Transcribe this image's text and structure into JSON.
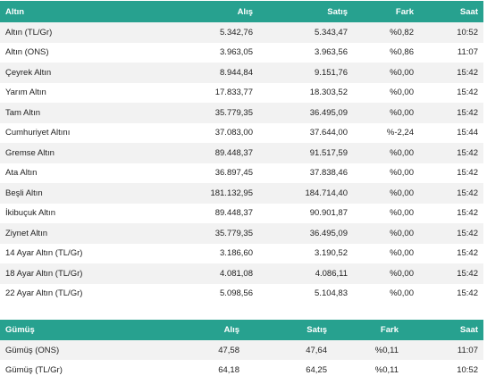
{
  "gold": {
    "headers": {
      "name": "Altın",
      "buy": "Alış",
      "sell": "Satış",
      "change": "Fark",
      "time": "Saat"
    },
    "rows": [
      {
        "name": "Altın (TL/Gr)",
        "buy": "5.342,76",
        "sell": "5.343,47",
        "change": "%0,82",
        "time": "10:52"
      },
      {
        "name": "Altın (ONS)",
        "buy": "3.963,05",
        "sell": "3.963,56",
        "change": "%0,86",
        "time": "11:07"
      },
      {
        "name": "Çeyrek Altın",
        "buy": "8.944,84",
        "sell": "9.151,76",
        "change": "%0,00",
        "time": "15:42"
      },
      {
        "name": "Yarım Altın",
        "buy": "17.833,77",
        "sell": "18.303,52",
        "change": "%0,00",
        "time": "15:42"
      },
      {
        "name": "Tam Altın",
        "buy": "35.779,35",
        "sell": "36.495,09",
        "change": "%0,00",
        "time": "15:42"
      },
      {
        "name": "Cumhuriyet Altını",
        "buy": "37.083,00",
        "sell": "37.644,00",
        "change": "%-2,24",
        "time": "15:44"
      },
      {
        "name": "Gremse Altın",
        "buy": "89.448,37",
        "sell": "91.517,59",
        "change": "%0,00",
        "time": "15:42"
      },
      {
        "name": "Ata Altın",
        "buy": "36.897,45",
        "sell": "37.838,46",
        "change": "%0,00",
        "time": "15:42"
      },
      {
        "name": "Beşli Altın",
        "buy": "181.132,95",
        "sell": "184.714,40",
        "change": "%0,00",
        "time": "15:42"
      },
      {
        "name": "İkibuçuk Altın",
        "buy": "89.448,37",
        "sell": "90.901,87",
        "change": "%0,00",
        "time": "15:42"
      },
      {
        "name": "Ziynet Altın",
        "buy": "35.779,35",
        "sell": "36.495,09",
        "change": "%0,00",
        "time": "15:42"
      },
      {
        "name": "14 Ayar Altın (TL/Gr)",
        "buy": "3.186,60",
        "sell": "3.190,52",
        "change": "%0,00",
        "time": "15:42"
      },
      {
        "name": "18 Ayar Altın (TL/Gr)",
        "buy": "4.081,08",
        "sell": "4.086,11",
        "change": "%0,00",
        "time": "15:42"
      },
      {
        "name": "22 Ayar Altın (TL/Gr)",
        "buy": "5.098,56",
        "sell": "5.104,83",
        "change": "%0,00",
        "time": "15:42"
      }
    ]
  },
  "silver": {
    "headers": {
      "name": "Gümüş",
      "buy": "Alış",
      "sell": "Satış",
      "change": "Fark",
      "time": "Saat"
    },
    "rows": [
      {
        "name": "Gümüş (ONS)",
        "buy": "47,58",
        "sell": "47,64",
        "change": "%0,11",
        "time": "11:07"
      },
      {
        "name": "Gümüş (TL/Gr)",
        "buy": "64,18",
        "sell": "64,25",
        "change": "%0,11",
        "time": "10:52"
      }
    ]
  },
  "colors": {
    "header_bg": "#27a18f",
    "header_text": "#ffffff",
    "row_alt": "#f2f2f2"
  }
}
